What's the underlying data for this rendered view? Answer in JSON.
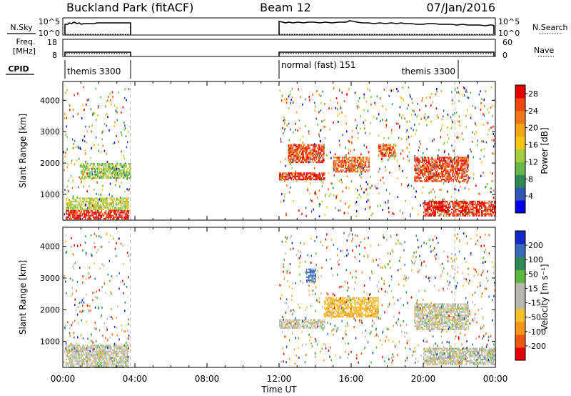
{
  "header": {
    "station": "Buckland Park (fitACF)",
    "beam": "Beam 12",
    "date": "07/Jan/2016"
  },
  "noise_panel": {
    "left_label": "N.Sky",
    "left_ticks": [
      "10^5",
      "10^0"
    ],
    "right_ticks": [
      "10^5",
      "10^0"
    ],
    "right_label": "N.Search"
  },
  "freq_panel": {
    "left_label_1": "Freq.",
    "left_label_2": "[MHz]",
    "left_ticks": [
      "18",
      "8"
    ],
    "right_ticks": [
      "60",
      "0"
    ],
    "right_label": "Nave"
  },
  "cpid_panel": {
    "label": "CPID",
    "segments": [
      "themis 3300",
      "normal (fast) 151",
      "themis 3300"
    ]
  },
  "colors": {
    "power_scale": [
      "#0000e6",
      "#2f57b8",
      "#2e8b57",
      "#68b84a",
      "#a6cf3e",
      "#f5c518",
      "#f5a51a",
      "#f07818",
      "#ee4a10",
      "#e00000"
    ],
    "velocity_scale": [
      "#e00000",
      "#f05a10",
      "#f5961a",
      "#f5c030",
      "#b8b8b0",
      "#b8b8b0",
      "#5ab83c",
      "#2e8b57",
      "#3a6ab8",
      "#1428c8"
    ]
  },
  "chart_data": [
    {
      "type": "heatmap",
      "title": "",
      "ylabel": "Slant Range [km]",
      "xlabel": "",
      "xlim": [
        "00:00",
        "24:00"
      ],
      "ylim": [
        180,
        4600
      ],
      "yticks": [
        1000,
        2000,
        3000,
        4000
      ],
      "colorbar_label": "Power [dB]",
      "colorbar_ticks": [
        4,
        8,
        12,
        16,
        20,
        24,
        28
      ],
      "colorbar_range": [
        0,
        30
      ],
      "data_intervals": [
        [
          "00:00",
          "03:45"
        ],
        [
          "12:00",
          "24:00"
        ]
      ],
      "regions": [
        {
          "start": "00:10",
          "end": "03:40",
          "range_min": 200,
          "range_max": 500,
          "value": 28
        },
        {
          "start": "00:10",
          "end": "03:40",
          "range_min": 500,
          "range_max": 900,
          "value": 14
        },
        {
          "start": "01:00",
          "end": "03:45",
          "range_min": 1500,
          "range_max": 2000,
          "value": 12
        },
        {
          "start": "12:00",
          "end": "14:30",
          "range_min": 1450,
          "range_max": 1700,
          "value": 28
        },
        {
          "start": "12:30",
          "end": "14:30",
          "range_min": 2000,
          "range_max": 2600,
          "value": 26
        },
        {
          "start": "15:00",
          "end": "17:00",
          "range_min": 1700,
          "range_max": 2200,
          "value": 24
        },
        {
          "start": "17:30",
          "end": "18:30",
          "range_min": 2200,
          "range_max": 2600,
          "value": 24
        },
        {
          "start": "19:30",
          "end": "22:30",
          "range_min": 1400,
          "range_max": 2200,
          "value": 26
        },
        {
          "start": "20:00",
          "end": "24:00",
          "range_min": 300,
          "range_max": 800,
          "value": 28
        }
      ]
    },
    {
      "type": "heatmap",
      "title": "",
      "ylabel": "Slant Range [km]",
      "xlabel": "Time UT",
      "xlim": [
        "00:00",
        "24:00"
      ],
      "ylim": [
        180,
        4600
      ],
      "xticks": [
        "00:00",
        "04:00",
        "08:00",
        "12:00",
        "16:00",
        "20:00",
        "00:00"
      ],
      "yticks": [
        1000,
        2000,
        3000,
        4000
      ],
      "colorbar_label": "Velocity [m s^-1]",
      "colorbar_ticks": [
        -200,
        -100,
        -50,
        -15,
        15,
        50,
        100,
        200
      ],
      "data_intervals": [
        [
          "00:00",
          "03:45"
        ],
        [
          "12:00",
          "24:00"
        ]
      ],
      "regions": [
        {
          "start": "00:10",
          "end": "03:40",
          "range_min": 200,
          "range_max": 900,
          "value": 0
        },
        {
          "start": "12:00",
          "end": "14:30",
          "range_min": 1450,
          "range_max": 1700,
          "value": 0
        },
        {
          "start": "13:30",
          "end": "14:00",
          "range_min": 2900,
          "range_max": 3300,
          "value": 150
        },
        {
          "start": "14:30",
          "end": "17:30",
          "range_min": 1800,
          "range_max": 2400,
          "value": -40
        },
        {
          "start": "19:30",
          "end": "22:30",
          "range_min": 1400,
          "range_max": 2200,
          "value": 0
        },
        {
          "start": "20:00",
          "end": "24:00",
          "range_min": 300,
          "range_max": 800,
          "value": 0
        }
      ]
    }
  ]
}
